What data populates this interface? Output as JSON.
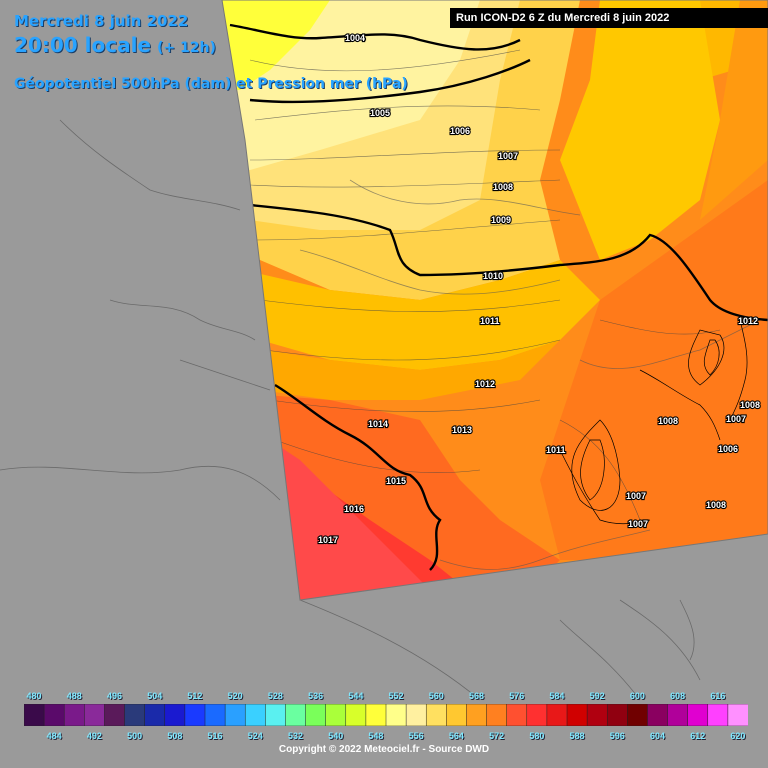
{
  "header": {
    "date": "Mercredi 8 juin 2022",
    "time": "20:00 locale",
    "lead": "(+ 12h)",
    "parameter": "Géopotentiel 500hPa (dam) et Pression mer (hPa)"
  },
  "run_info": "Run ICON-D2 6 Z du Mercredi 8 juin 2022",
  "copyright": "Copyright © 2022 Meteociel.fr - Source DWD",
  "legend": {
    "top_labels": [
      "480",
      "488",
      "496",
      "504",
      "512",
      "520",
      "528",
      "536",
      "544",
      "552",
      "560",
      "568",
      "576",
      "584",
      "592",
      "600",
      "608",
      "616"
    ],
    "bottom_labels": [
      "484",
      "492",
      "500",
      "508",
      "516",
      "524",
      "532",
      "540",
      "548",
      "556",
      "564",
      "572",
      "580",
      "588",
      "596",
      "604",
      "612",
      "620"
    ],
    "colors": [
      "#3a0a4a",
      "#5a0a6a",
      "#7a1a8a",
      "#8a2a9a",
      "#5a1a5a",
      "#2a3a7a",
      "#1a2aaa",
      "#1a1ad0",
      "#1a3aff",
      "#1a6aff",
      "#2aa0ff",
      "#3ad0ff",
      "#5af0f0",
      "#6affa0",
      "#7aff5a",
      "#aaff3a",
      "#d8ff2a",
      "#ffff3a",
      "#ffff8a",
      "#fff0a0",
      "#ffe060",
      "#ffc830",
      "#ffa020",
      "#ff8020",
      "#ff5030",
      "#ff3030",
      "#e81818",
      "#d00000",
      "#b00010",
      "#900010",
      "#700000",
      "#8a0060",
      "#b0009a",
      "#e000d0",
      "#ff40ff",
      "#ff90ff"
    ]
  },
  "isobars": [
    "1004",
    "1005",
    "1006",
    "1007",
    "1008",
    "1009",
    "1010",
    "1011",
    "1012",
    "1013",
    "1014",
    "1015",
    "1016",
    "1017",
    "1008",
    "1007",
    "1006",
    "1007",
    "1007",
    "1008",
    "1008",
    "1011",
    "1012"
  ]
}
